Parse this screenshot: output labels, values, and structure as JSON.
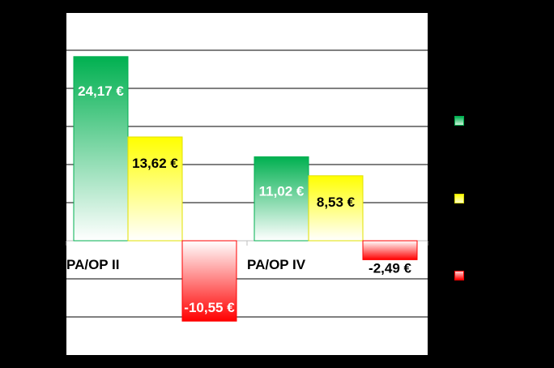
{
  "chart_data": {
    "type": "bar",
    "categories": [
      "PA/OP II",
      "PA/OP IV"
    ],
    "series": [
      {
        "values": [
          24.17,
          11.02
        ],
        "labels": [
          "24,17 €",
          "11,02 €"
        ],
        "color": "#00b050"
      },
      {
        "values": [
          13.62,
          8.53
        ],
        "labels": [
          "13,62 €",
          "8,53 €"
        ],
        "color": "#ffff00"
      },
      {
        "values": [
          -10.55,
          -2.49
        ],
        "labels": [
          "-10,55 €",
          "-2,49 €"
        ],
        "color": "#ff0000"
      }
    ],
    "ylim": [
      -15,
      30
    ],
    "grid": true,
    "legend_position": "right",
    "title": "",
    "xlabel": "",
    "ylabel": ""
  },
  "colors": {
    "background": "#000000",
    "plot_area": "#ffffff",
    "gridline": "#000000",
    "label_text": "#000000",
    "inner_label_text": "#ffffff"
  }
}
